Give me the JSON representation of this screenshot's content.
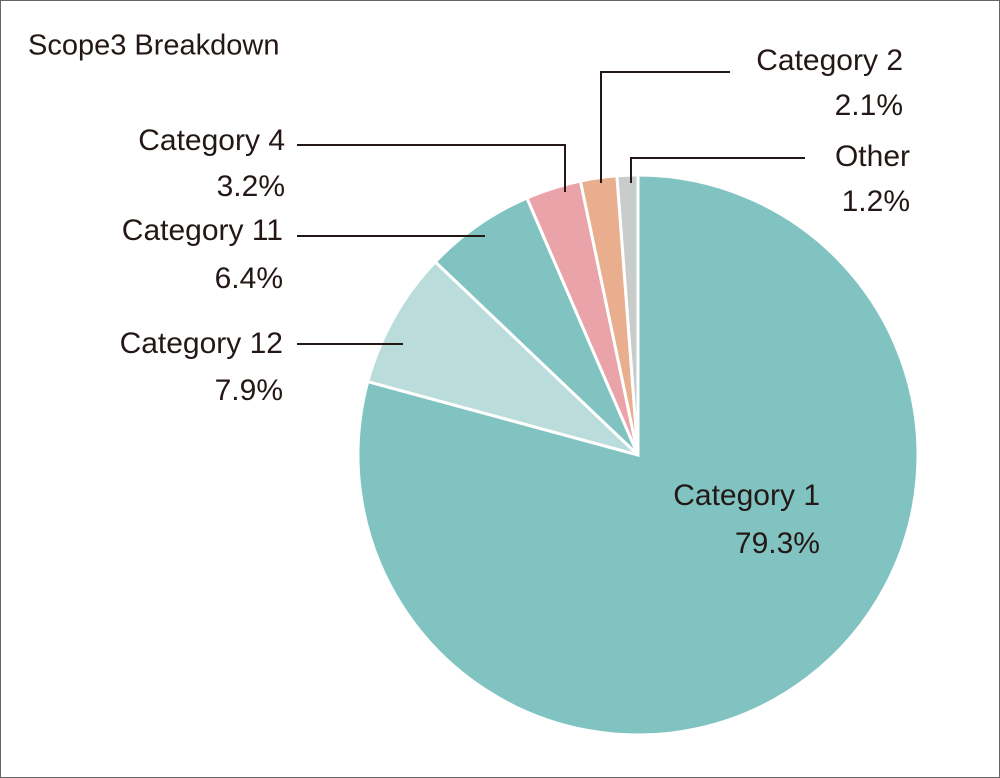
{
  "chart_data": {
    "type": "pie",
    "title": "Scope3 Breakdown",
    "categories": [
      "Category 1",
      "Category 12",
      "Category 11",
      "Category 4",
      "Category 2",
      "Other"
    ],
    "values": [
      79.3,
      7.9,
      6.4,
      3.2,
      2.1,
      1.2
    ],
    "value_labels": [
      "79.3%",
      "7.9%",
      "6.4%",
      "3.2%",
      "2.1%",
      "1.2%"
    ],
    "colors": [
      "#80c3c1",
      "#badcdb",
      "#80c3c1",
      "#e9a3a9",
      "#e9ae8e",
      "#c8cccb"
    ]
  }
}
